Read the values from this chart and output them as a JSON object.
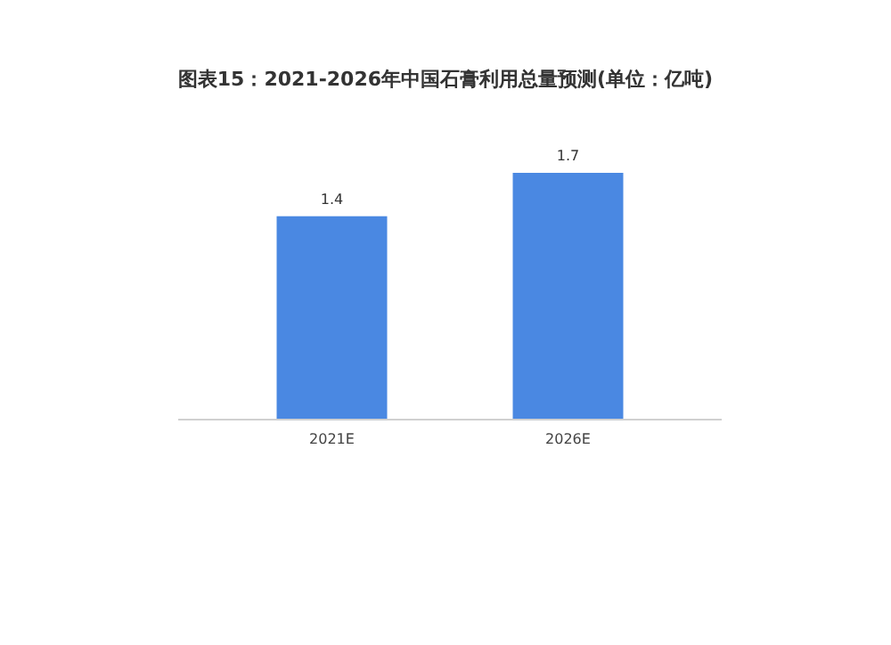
{
  "chart_data": {
    "type": "bar",
    "title": "图表15：2021-2026年中国石膏利用总量预测(单位：亿吨)",
    "categories": [
      "2021E",
      "2026E"
    ],
    "values": [
      1.4,
      1.7
    ],
    "color": "#4a88e2",
    "data_labels": true
  }
}
